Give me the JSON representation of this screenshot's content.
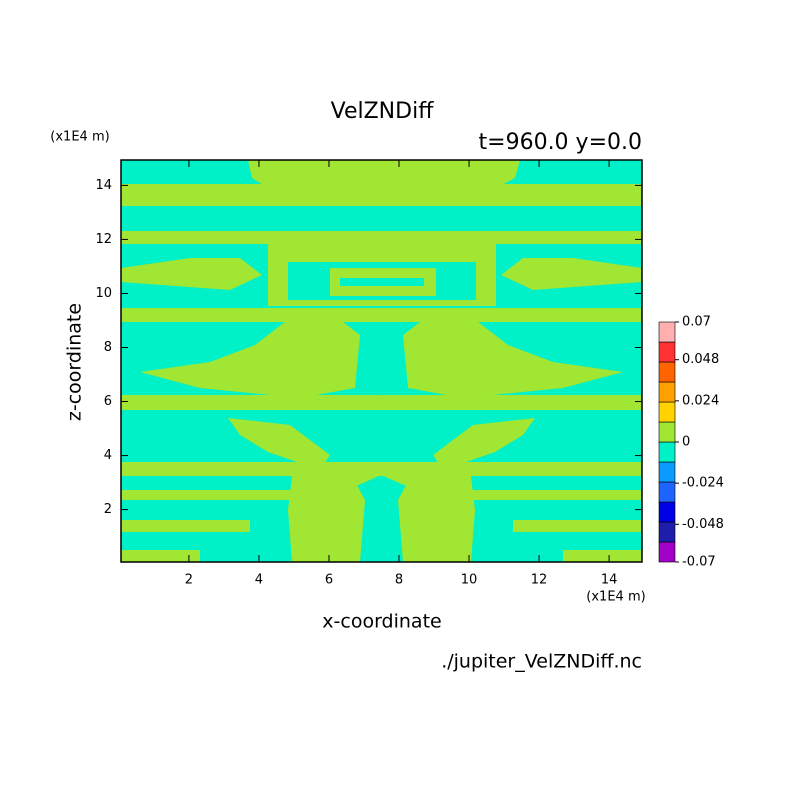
{
  "chart_data": {
    "type": "contour",
    "title": "VelZNDiff",
    "subtitle": "t=960.0 y=0.0",
    "xlabel": "x-coordinate",
    "ylabel": "z-coordinate",
    "x_unit": "(x1E4 m)",
    "y_unit": "(x1E4 m)",
    "xlim": [
      0.06,
      14.94
    ],
    "ylim": [
      0.06,
      14.94
    ],
    "xticks": [
      2,
      4,
      6,
      8,
      10,
      12,
      14
    ],
    "yticks": [
      2,
      4,
      6,
      8,
      10,
      12,
      14
    ],
    "source": "./jupiter_VelZNDiff.nc",
    "colorbar": {
      "lim": [
        -0.07,
        0.07
      ],
      "ticks": [
        -0.07,
        -0.048,
        -0.024,
        0,
        0.024,
        0.048,
        0.07
      ],
      "colors": [
        "#a000c8",
        "#1e1eaa",
        "#0000e6",
        "#1e64ff",
        "#0a9bff",
        "#00f0c8",
        "#a0e632",
        "#ffd200",
        "#ffa000",
        "#ff6400",
        "#ff3232",
        "#ffafaf"
      ]
    }
  }
}
